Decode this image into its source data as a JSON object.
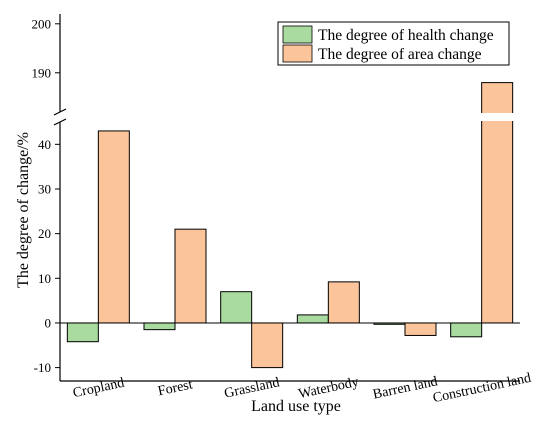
{
  "chart_data": {
    "type": "bar",
    "categories": [
      "Cropland",
      "Forest",
      "Grassland",
      "Waterbody",
      "Barren land",
      "Construction land"
    ],
    "series": [
      {
        "name": "The degree of health change",
        "color": "#a9dba1",
        "values": [
          -4.2,
          -1.5,
          7.0,
          1.8,
          -0.3,
          -3.1
        ]
      },
      {
        "name": "The degree of area change",
        "color": "#fbc49a",
        "values": [
          43,
          21,
          -10,
          9.2,
          -2.8,
          188
        ]
      }
    ],
    "xlabel": "Land use type",
    "ylabel": "The degree of change/%",
    "y_axis_break": {
      "from": 45,
      "to": 182
    },
    "ylim_lower": [
      -13,
      45
    ],
    "ylim_upper": [
      182,
      202
    ],
    "yticks_lower": [
      "-10",
      "0",
      "10",
      "20",
      "30",
      "40"
    ],
    "yticks_upper": [
      "190",
      "200"
    ],
    "yticks_lower_values": [
      -10,
      0,
      10,
      20,
      30,
      40
    ],
    "yticks_upper_values": [
      190,
      200
    ],
    "legend_position": "top-right",
    "grid": false,
    "axis_color": "#000000",
    "bar_edge_color": "#000000"
  }
}
